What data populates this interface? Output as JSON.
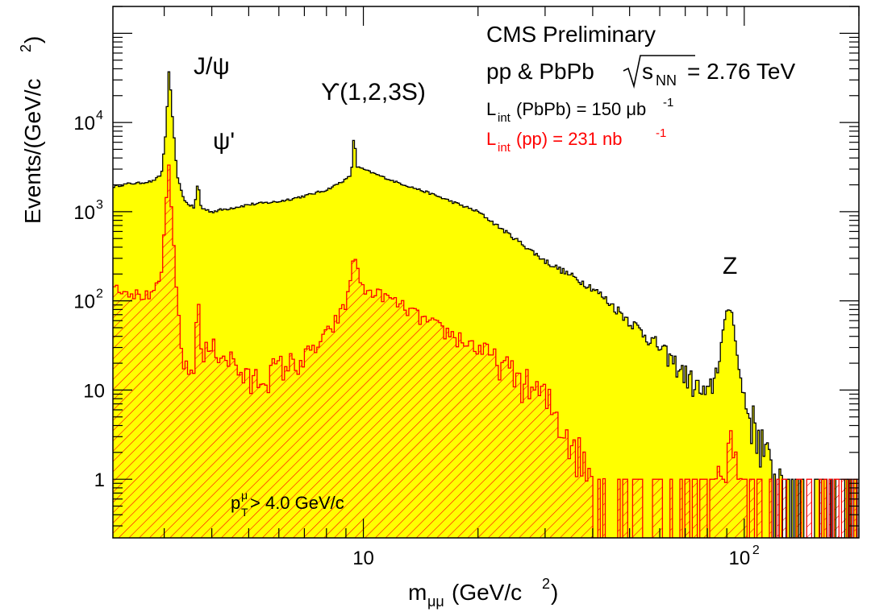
{
  "chart_data": {
    "type": "area",
    "x_scale": "log",
    "y_scale": "log",
    "xlim": [
      2.2,
      200
    ],
    "ylim": [
      0.22,
      200000
    ],
    "xlabel": {
      "main": "m",
      "sub": "μμ",
      "rest": " (GeV/c",
      "sup": "2",
      "end": ")"
    },
    "ylabel": {
      "main": "Events/(GeV/c",
      "sup": "2",
      "end": ")"
    },
    "x_ticks": [
      {
        "value": 10,
        "base": "10",
        "exp": ""
      },
      {
        "value": 100,
        "base": "10",
        "exp": "2"
      }
    ],
    "y_ticks": [
      {
        "value": 1,
        "base": "1",
        "exp": ""
      },
      {
        "value": 10,
        "base": "10",
        "exp": ""
      },
      {
        "value": 100,
        "base": "10",
        "exp": "2"
      },
      {
        "value": 1000,
        "base": "10",
        "exp": "3"
      },
      {
        "value": 10000,
        "base": "10",
        "exp": "4"
      }
    ],
    "colors": {
      "pbpb_fill": "#ffff00",
      "pbpb_line": "#000000",
      "pp_line": "#ff0000",
      "pp_hatch": "#ff0000"
    },
    "series": [
      {
        "name": "PbPb",
        "points": [
          [
            2.2,
            1900
          ],
          [
            2.4,
            2050
          ],
          [
            2.6,
            2100
          ],
          [
            2.8,
            2200
          ],
          [
            2.95,
            2600
          ],
          [
            3.03,
            8000
          ],
          [
            3.09,
            42000
          ],
          [
            3.15,
            12000
          ],
          [
            3.25,
            2400
          ],
          [
            3.4,
            1300
          ],
          [
            3.6,
            1100
          ],
          [
            3.68,
            2200
          ],
          [
            3.75,
            1100
          ],
          [
            4.0,
            1000
          ],
          [
            4.5,
            1100
          ],
          [
            5.0,
            1200
          ],
          [
            6.0,
            1300
          ],
          [
            7.0,
            1500
          ],
          [
            8.0,
            1750
          ],
          [
            9.0,
            2300
          ],
          [
            9.3,
            2600
          ],
          [
            9.46,
            8000
          ],
          [
            9.6,
            3200
          ],
          [
            10.0,
            3000
          ],
          [
            10.4,
            2800
          ],
          [
            12,
            2200
          ],
          [
            15,
            1600
          ],
          [
            20,
            1000
          ],
          [
            25,
            500
          ],
          [
            30,
            280
          ],
          [
            40,
            140
          ],
          [
            50,
            60
          ],
          [
            60,
            30
          ],
          [
            70,
            15
          ],
          [
            80,
            8
          ],
          [
            85,
            18
          ],
          [
            88,
            45
          ],
          [
            91.2,
            90
          ],
          [
            94,
            60
          ],
          [
            97,
            15
          ],
          [
            102,
            6
          ],
          [
            110,
            3
          ],
          [
            120,
            1
          ],
          [
            140,
            0.4
          ],
          [
            180,
            0.3
          ],
          [
            200,
            0.3
          ]
        ]
      },
      {
        "name": "pp",
        "points": [
          [
            2.2,
            150
          ],
          [
            2.5,
            120
          ],
          [
            2.8,
            110
          ],
          [
            2.95,
            200
          ],
          [
            3.04,
            1500
          ],
          [
            3.09,
            3500
          ],
          [
            3.14,
            900
          ],
          [
            3.25,
            90
          ],
          [
            3.4,
            15
          ],
          [
            3.6,
            18
          ],
          [
            3.68,
            160
          ],
          [
            3.75,
            25
          ],
          [
            4.0,
            30
          ],
          [
            4.5,
            22
          ],
          [
            5.0,
            12
          ],
          [
            6.0,
            18
          ],
          [
            7.0,
            22
          ],
          [
            8.0,
            40
          ],
          [
            9.0,
            90
          ],
          [
            9.3,
            200
          ],
          [
            9.46,
            370
          ],
          [
            9.7,
            200
          ],
          [
            10.0,
            130
          ],
          [
            11,
            120
          ],
          [
            12,
            100
          ],
          [
            15,
            55
          ],
          [
            20,
            30
          ],
          [
            25,
            15
          ],
          [
            30,
            8
          ],
          [
            35,
            3
          ],
          [
            40,
            1
          ],
          [
            50,
            0.4
          ],
          [
            60,
            0.3
          ],
          [
            70,
            0.3
          ],
          [
            80,
            0.4
          ],
          [
            88,
            1.5
          ],
          [
            91.2,
            3
          ],
          [
            95,
            1.5
          ],
          [
            100,
            0.4
          ],
          [
            120,
            0.3
          ],
          [
            200,
            0.3
          ]
        ]
      }
    ],
    "annotations": [
      {
        "text": "J/ψ",
        "x": 3.1,
        "y": 25000
      },
      {
        "text": "ψ'",
        "x": 3.69,
        "y": 2800
      },
      {
        "text": "ϒ(1,2,3S)",
        "x": 9.6,
        "y": 9000
      },
      {
        "text": "Z",
        "x": 91.2,
        "y": 160
      }
    ]
  },
  "labels": {
    "title": "CMS Preliminary",
    "collision_main": "pp & PbPb ",
    "sqrt_s": "s",
    "sqrt_s_sub": "NN",
    "collision_energy": " = 2.76 TeV",
    "lumi_pbpb_L": "L",
    "lumi_pbpb_sub": "int",
    "lumi_pbpb_rest": " (PbPb) = 150 μb",
    "lumi_pbpb_sup": "-1",
    "lumi_pp_L": "L",
    "lumi_pp_sub": "int",
    "lumi_pp_rest": " (pp) = 231 nb",
    "lumi_pp_sup": "-1",
    "cut_p": "p",
    "cut_sup": "μ",
    "cut_sub": "T",
    "cut_rest": " > 4.0 GeV/c"
  }
}
